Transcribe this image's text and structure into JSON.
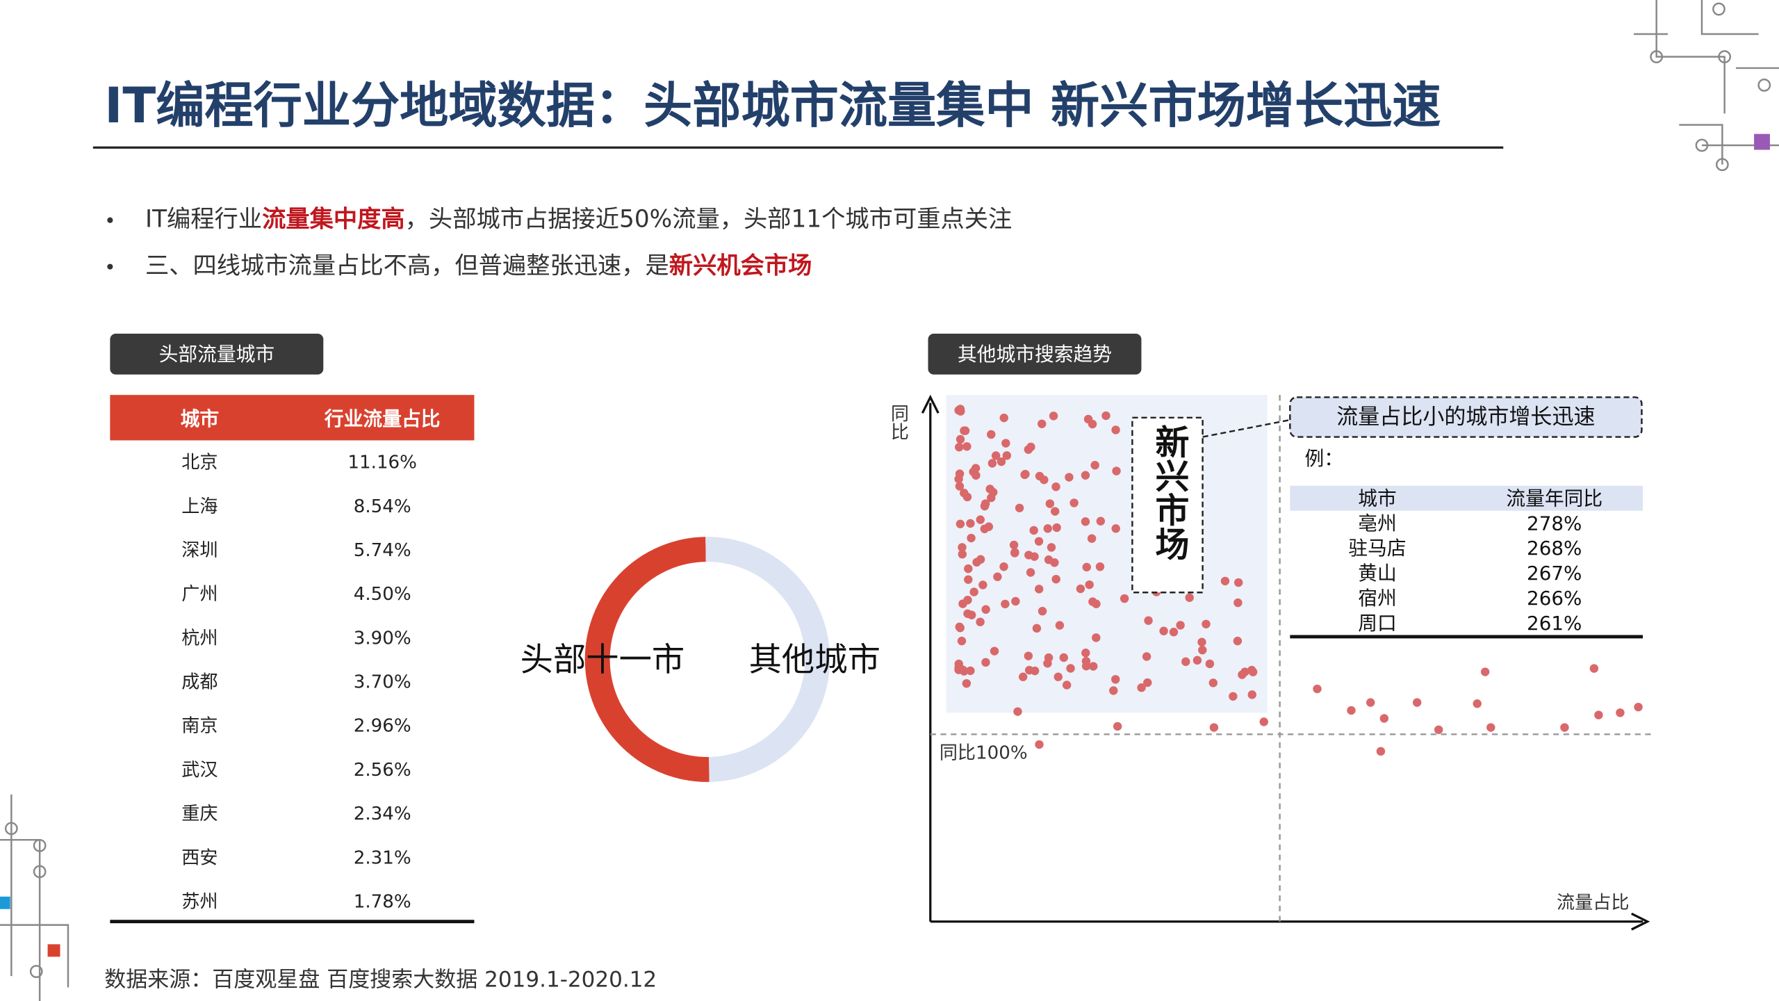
{
  "header": {
    "title": "IT编程行业分地域数据：头部城市流量集中 新兴市场增长迅速"
  },
  "bullets": [
    {
      "parts": [
        "IT编程行业",
        "流量集中度高",
        "，头部城市占据接近50%流量，头部11个城市可重点关注"
      ],
      "highlight": [
        false,
        true,
        false
      ]
    },
    {
      "parts": [
        "三、四线城市流量占比不高，但普遍整张迅速，是",
        "新兴机会市场"
      ],
      "highlight": [
        false,
        true
      ]
    }
  ],
  "left_panel": {
    "label": "头部流量城市",
    "table": {
      "header": [
        "城市",
        "行业流量占比"
      ],
      "rows": [
        [
          "北京",
          "11.16%"
        ],
        [
          "上海",
          "8.54%"
        ],
        [
          "深圳",
          "5.74%"
        ],
        [
          "广州",
          "4.50%"
        ],
        [
          "杭州",
          "3.90%"
        ],
        [
          "成都",
          "3.70%"
        ],
        [
          "南京",
          "2.96%"
        ],
        [
          "武汉",
          "2.56%"
        ],
        [
          "重庆",
          "2.34%"
        ],
        [
          "西安",
          "2.31%"
        ],
        [
          "苏州",
          "1.78%"
        ]
      ]
    }
  },
  "donut": {
    "labels": [
      "头部十一市",
      "其他城市"
    ]
  },
  "right_panel": {
    "label": "其他城市搜索趋势",
    "y_axis_label": "同比",
    "x_axis_label": "流量占比",
    "reference_label": "同比100%",
    "region_label": "新兴市场",
    "callout": "流量占比小的城市增长迅速",
    "example_label": "例：",
    "table": {
      "header": [
        "城市",
        "流量年同比"
      ],
      "rows": [
        [
          "亳州",
          "278%"
        ],
        [
          "驻马店",
          "268%"
        ],
        [
          "黄山",
          "267%"
        ],
        [
          "宿州",
          "266%"
        ],
        [
          "周口",
          "261%"
        ]
      ]
    }
  },
  "source": "数据来源：百度观星盘 百度搜索大数据 2019.1-2020.12"
}
